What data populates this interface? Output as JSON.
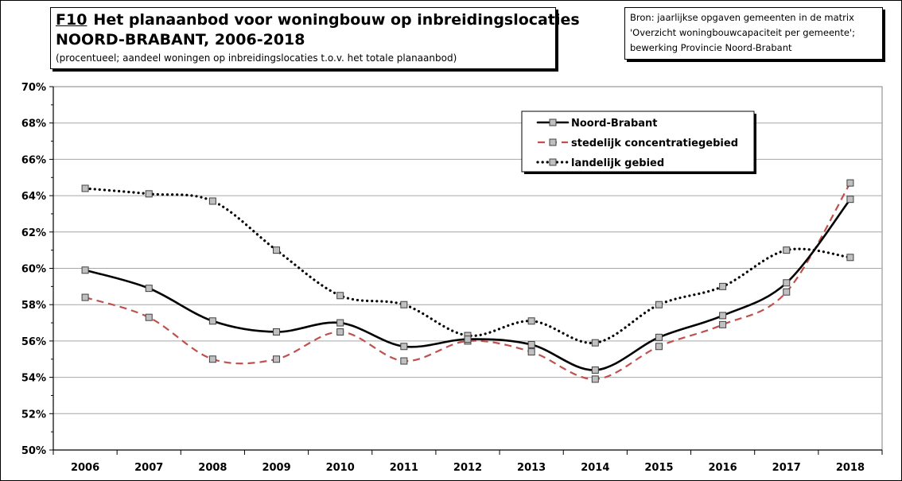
{
  "header": {
    "code": "F10",
    "title_line1": "Het planaanbod voor woningbouw op inbreidingslocaties",
    "title_line2": "NOORD-BRABANT, 2006-2018",
    "subtitle": "(procentueel; aandeel woningen op inbreidingslocaties t.o.v. het totale planaanbod)"
  },
  "source": {
    "lines": [
      "Bron: jaarlijkse opgaven gemeenten in de matrix",
      "'Overzicht woningbouwcapaciteit per gemeente';",
      "bewerking Provincie Noord-Brabant"
    ]
  },
  "chart_data": {
    "type": "line",
    "x": [
      "2006",
      "2007",
      "2008",
      "2009",
      "2010",
      "2011",
      "2012",
      "2013",
      "2014",
      "2015",
      "2016",
      "2017",
      "2018"
    ],
    "ylim": [
      50,
      70
    ],
    "yticks": [
      "50%",
      "52%",
      "54%",
      "56%",
      "58%",
      "60%",
      "62%",
      "64%",
      "66%",
      "68%",
      "70%"
    ],
    "grid": true,
    "legend_position": "top-right",
    "series": [
      {
        "name": "Noord-Brabant",
        "style": "solid",
        "color": "#000000",
        "values": [
          59.9,
          58.9,
          57.1,
          56.5,
          57.0,
          55.7,
          56.1,
          55.8,
          54.4,
          56.2,
          57.4,
          59.2,
          63.8
        ]
      },
      {
        "name": "stedelijk concentratiegebied",
        "style": "dashed",
        "color": "#c0504d",
        "values": [
          58.4,
          57.3,
          55.0,
          55.0,
          56.5,
          54.9,
          56.0,
          55.4,
          53.9,
          55.7,
          56.9,
          58.7,
          64.7
        ]
      },
      {
        "name": "landelijk gebied",
        "style": "dotted",
        "color": "#000000",
        "values": [
          64.4,
          64.1,
          63.7,
          61.0,
          58.5,
          58.0,
          56.3,
          57.1,
          55.9,
          58.0,
          59.0,
          61.0,
          60.6
        ]
      }
    ],
    "marker_color": "#c0c0c0"
  }
}
